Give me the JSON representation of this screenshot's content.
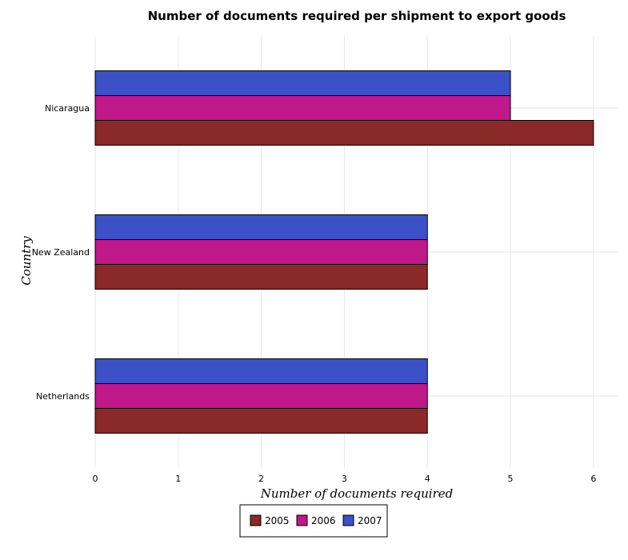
{
  "chart_data": {
    "type": "bar",
    "orientation": "horizontal",
    "title": "Number of documents required per shipment to export goods",
    "xlabel": "Number of documents required",
    "ylabel": "Country",
    "categories": [
      "Netherlands",
      "New Zealand",
      "Nicaragua"
    ],
    "series": [
      {
        "name": "2005",
        "color": "#8b2828",
        "values": [
          4,
          4,
          6
        ]
      },
      {
        "name": "2006",
        "color": "#c0178b",
        "values": [
          4,
          4,
          5
        ]
      },
      {
        "name": "2007",
        "color": "#3c50c8",
        "values": [
          4,
          4,
          5
        ]
      }
    ],
    "xlim": [
      0,
      6.3
    ],
    "xticks": [
      "0",
      "1",
      "2",
      "3",
      "4",
      "5",
      "6"
    ],
    "grid": true,
    "legend_position": "bottom-center"
  }
}
